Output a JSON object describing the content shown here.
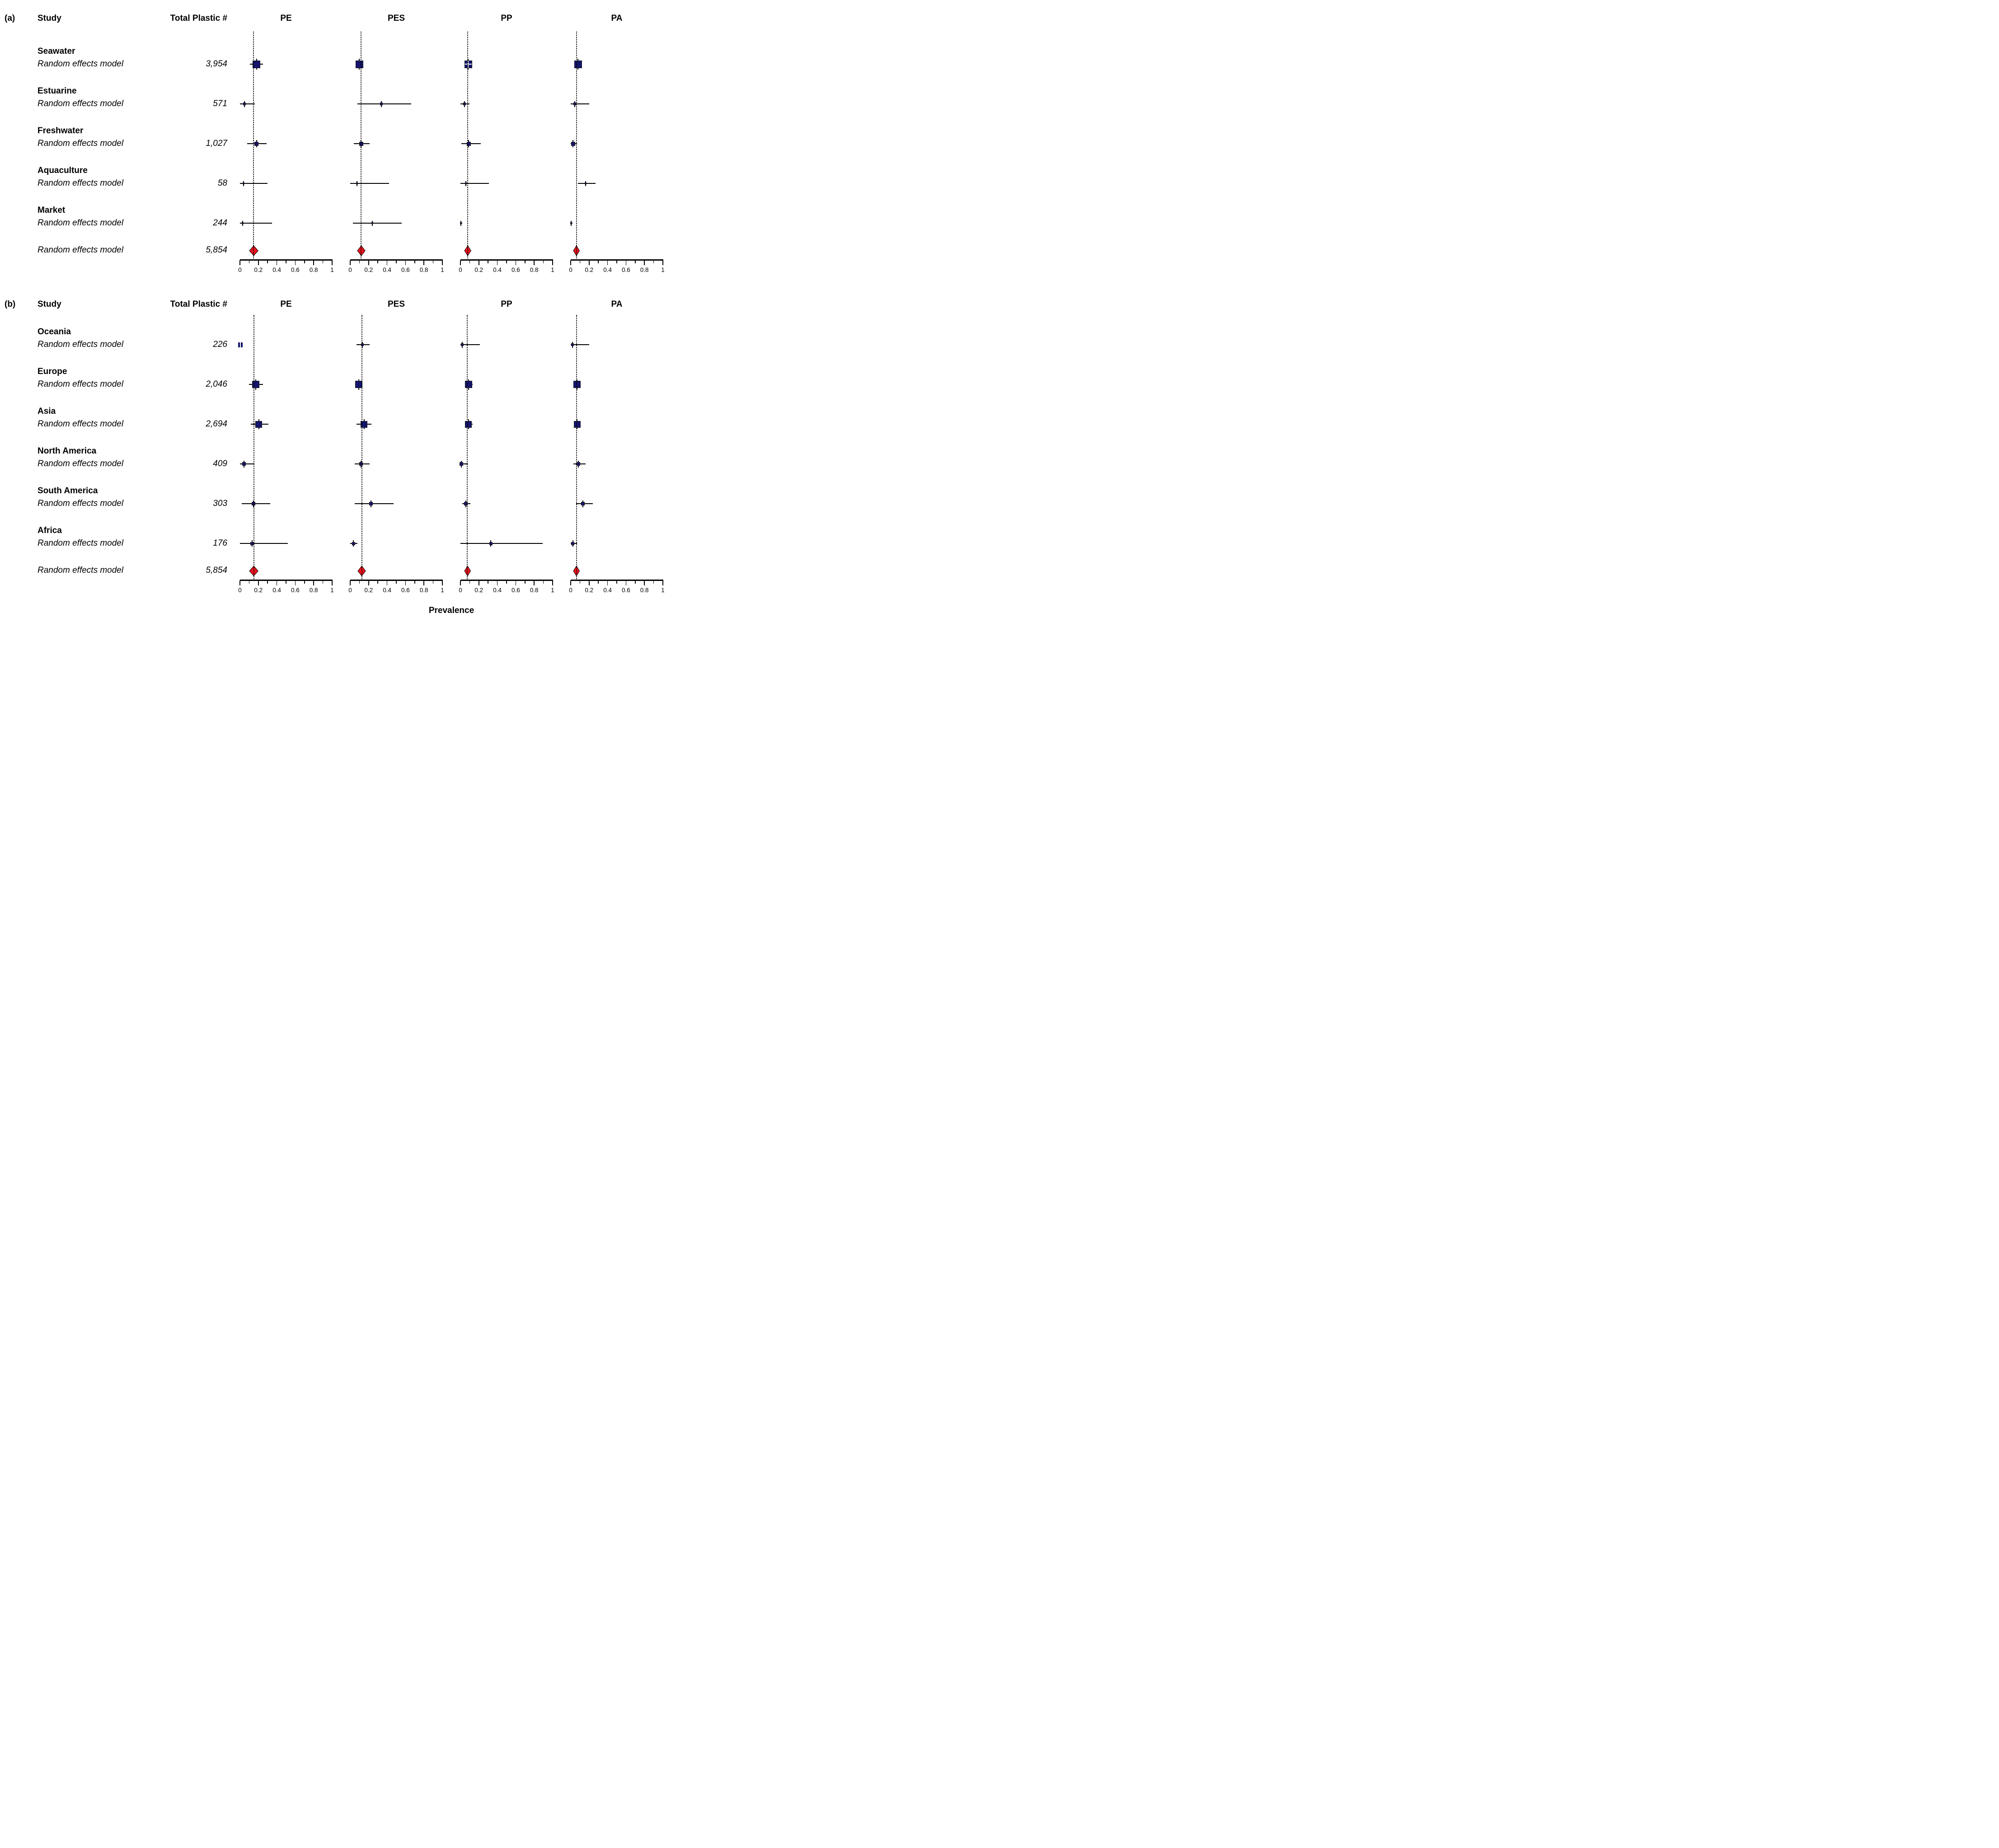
{
  "chart_data": {
    "type": "forest",
    "xlabel": "Prevalence",
    "axis": {
      "range": [
        0,
        1
      ],
      "ticks": [
        0,
        0.2,
        0.4,
        0.6,
        0.8,
        1
      ],
      "tick_labels": [
        "0",
        "0.2",
        "0.4",
        "0.6",
        "0.8",
        "1"
      ],
      "minor_ticks": [
        0.1,
        0.3,
        0.5,
        0.7,
        0.9
      ]
    },
    "colors": {
      "square": "#14146b",
      "diamond": "#e8131d",
      "ci_line": "#000000",
      "reference_line": "#000000"
    },
    "panels": [
      {
        "label": "(a)",
        "study_header": "Study",
        "total_header": "Total Plastic #",
        "columns": [
          "PE",
          "PES",
          "PP",
          "PA"
        ],
        "groups": [
          {
            "name": "Seawater",
            "model_label": "Random effects model",
            "total": "3,954",
            "size": 17,
            "estimates": [
              {
                "col": "PE",
                "value": 0.18,
                "lo": 0.11,
                "hi": 0.25
              },
              {
                "col": "PES",
                "value": 0.1,
                "lo": 0.06,
                "hi": 0.14
              },
              {
                "col": "PP",
                "value": 0.085,
                "lo": 0.05,
                "hi": 0.12,
                "style": "cross"
              },
              {
                "col": "PA",
                "value": 0.08,
                "lo": 0.05,
                "hi": 0.12
              }
            ]
          },
          {
            "name": "Estuarine",
            "model_label": "Random effects model",
            "total": "571",
            "size": 6,
            "estimates": [
              {
                "col": "PE",
                "value": 0.05,
                "lo": 0.0,
                "hi": 0.16
              },
              {
                "col": "PES",
                "value": 0.34,
                "lo": 0.08,
                "hi": 0.66
              },
              {
                "col": "PP",
                "value": 0.045,
                "lo": 0.0,
                "hi": 0.1
              },
              {
                "col": "PA",
                "value": 0.046,
                "lo": 0.0,
                "hi": 0.2
              }
            ]
          },
          {
            "name": "Freshwater",
            "model_label": "Random effects model",
            "total": "1,027",
            "size": 9,
            "estimates": [
              {
                "col": "PE",
                "value": 0.18,
                "lo": 0.08,
                "hi": 0.29
              },
              {
                "col": "PES",
                "value": 0.12,
                "lo": 0.04,
                "hi": 0.21
              },
              {
                "col": "PP",
                "value": 0.09,
                "lo": 0.01,
                "hi": 0.22
              },
              {
                "col": "PA",
                "value": 0.025,
                "lo": 0.0,
                "hi": 0.07
              }
            ]
          },
          {
            "name": "Aquaculture",
            "model_label": "Random effects model",
            "total": "58",
            "size": 4,
            "estimates": [
              {
                "col": "PE",
                "value": 0.04,
                "lo": 0.0,
                "hi": 0.3
              },
              {
                "col": "PES",
                "value": 0.075,
                "lo": 0.0,
                "hi": 0.42
              },
              {
                "col": "PP",
                "value": 0.06,
                "lo": 0.0,
                "hi": 0.31
              },
              {
                "col": "PA",
                "value": 0.16,
                "lo": 0.08,
                "hi": 0.27
              }
            ]
          },
          {
            "name": "Market",
            "model_label": "Random effects model",
            "total": "244",
            "size": 4,
            "estimates": [
              {
                "col": "PE",
                "value": 0.03,
                "lo": 0.0,
                "hi": 0.35
              },
              {
                "col": "PES",
                "value": 0.24,
                "lo": 0.03,
                "hi": 0.56
              },
              {
                "col": "PP",
                "value": 0.005,
                "lo": 0.0,
                "hi": 0.02
              },
              {
                "col": "PA",
                "value": 0.005,
                "lo": 0.0,
                "hi": 0.02
              }
            ]
          }
        ],
        "overall": {
          "model_label": "Random effects model",
          "total": "5,854",
          "estimates": [
            {
              "col": "PE",
              "value": 0.148,
              "lo": 0.101,
              "hi": 0.195
            },
            {
              "col": "PES",
              "value": 0.119,
              "lo": 0.077,
              "hi": 0.161
            },
            {
              "col": "PP",
              "value": 0.078,
              "lo": 0.043,
              "hi": 0.113
            },
            {
              "col": "PA",
              "value": 0.062,
              "lo": 0.029,
              "hi": 0.095
            }
          ]
        }
      },
      {
        "label": "(b)",
        "study_header": "Study",
        "total_header": "Total Plastic #",
        "columns": [
          "PE",
          "PES",
          "PP",
          "PA"
        ],
        "groups": [
          {
            "name": "Oceania",
            "model_label": "Random effects model",
            "total": "226",
            "size": 6,
            "estimates": [
              {
                "col": "PE",
                "value": 0.003,
                "lo": 0.0,
                "hi": 0.01,
                "style": "split"
              },
              {
                "col": "PES",
                "value": 0.13,
                "lo": 0.07,
                "hi": 0.21
              },
              {
                "col": "PP",
                "value": 0.02,
                "lo": 0.0,
                "hi": 0.21
              },
              {
                "col": "PA",
                "value": 0.02,
                "lo": 0.0,
                "hi": 0.2
              }
            ]
          },
          {
            "name": "Europe",
            "model_label": "Random effects model",
            "total": "2,046",
            "size": 16,
            "estimates": [
              {
                "col": "PE",
                "value": 0.17,
                "lo": 0.1,
                "hi": 0.25
              },
              {
                "col": "PES",
                "value": 0.095,
                "lo": 0.06,
                "hi": 0.13
              },
              {
                "col": "PP",
                "value": 0.09,
                "lo": 0.06,
                "hi": 0.13
              },
              {
                "col": "PA",
                "value": 0.07,
                "lo": 0.04,
                "hi": 0.1
              }
            ]
          },
          {
            "name": "Asia",
            "model_label": "Random effects model",
            "total": "2,694",
            "size": 15,
            "estimates": [
              {
                "col": "PE",
                "value": 0.205,
                "lo": 0.12,
                "hi": 0.31
              },
              {
                "col": "PES",
                "value": 0.15,
                "lo": 0.07,
                "hi": 0.23
              },
              {
                "col": "PP",
                "value": 0.088,
                "lo": 0.05,
                "hi": 0.13
              },
              {
                "col": "PA",
                "value": 0.07,
                "lo": 0.04,
                "hi": 0.11
              }
            ]
          },
          {
            "name": "North America",
            "model_label": "Random effects model",
            "total": "409",
            "size": 8,
            "estimates": [
              {
                "col": "PE",
                "value": 0.046,
                "lo": 0.0,
                "hi": 0.15
              },
              {
                "col": "PES",
                "value": 0.12,
                "lo": 0.05,
                "hi": 0.21
              },
              {
                "col": "PP",
                "value": 0.011,
                "lo": 0.0,
                "hi": 0.08
              },
              {
                "col": "PA",
                "value": 0.085,
                "lo": 0.03,
                "hi": 0.16
              }
            ]
          },
          {
            "name": "South America",
            "model_label": "Random effects model",
            "total": "303",
            "size": 8,
            "estimates": [
              {
                "col": "PE",
                "value": 0.148,
                "lo": 0.02,
                "hi": 0.33
              },
              {
                "col": "PES",
                "value": 0.225,
                "lo": 0.05,
                "hi": 0.47
              },
              {
                "col": "PP",
                "value": 0.06,
                "lo": 0.02,
                "hi": 0.11
              },
              {
                "col": "PA",
                "value": 0.13,
                "lo": 0.06,
                "hi": 0.24
              }
            ]
          },
          {
            "name": "Africa",
            "model_label": "Random effects model",
            "total": "176",
            "size": 7,
            "estimates": [
              {
                "col": "PE",
                "value": 0.13,
                "lo": 0.0,
                "hi": 0.52
              },
              {
                "col": "PES",
                "value": 0.036,
                "lo": 0.0,
                "hi": 0.08
              },
              {
                "col": "PP",
                "value": 0.33,
                "lo": 0.0,
                "hi": 0.89
              },
              {
                "col": "PA",
                "value": 0.024,
                "lo": 0.0,
                "hi": 0.07
              }
            ]
          }
        ],
        "overall": {
          "model_label": "Random effects model",
          "total": "5,854",
          "estimates": [
            {
              "col": "PE",
              "value": 0.15,
              "lo": 0.103,
              "hi": 0.197
            },
            {
              "col": "PES",
              "value": 0.127,
              "lo": 0.085,
              "hi": 0.169
            },
            {
              "col": "PP",
              "value": 0.075,
              "lo": 0.042,
              "hi": 0.108
            },
            {
              "col": "PA",
              "value": 0.062,
              "lo": 0.029,
              "hi": 0.095
            }
          ]
        }
      }
    ]
  }
}
